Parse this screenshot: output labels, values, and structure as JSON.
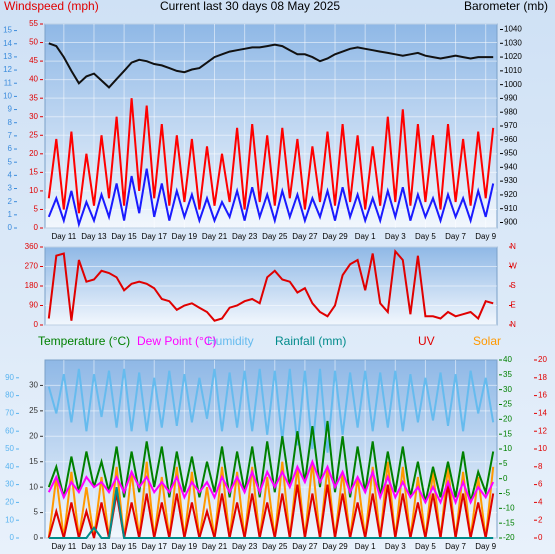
{
  "chart_data": [
    {
      "type": "line",
      "title": "Current last 30 days 08 May 2025",
      "y_label": "Windspeed (mph)",
      "y2_label": "Barometer (mb)",
      "categories": [
        null,
        null,
        "Day 11",
        null,
        null,
        null,
        "Day 13",
        null,
        null,
        null,
        "Day 15",
        null,
        null,
        null,
        "Day 17",
        null,
        null,
        null,
        "Day 19",
        null,
        null,
        null,
        "Day 21",
        null,
        null,
        null,
        "Day 23",
        null,
        null,
        null,
        "Day 25",
        null,
        null,
        null,
        "Day 27",
        null,
        null,
        null,
        "Day 29",
        null,
        null,
        null,
        "Day 1",
        null,
        null,
        null,
        "Day 3",
        null,
        null,
        null,
        "Day 5",
        null,
        null,
        null,
        "Day 7",
        null,
        null,
        null,
        "Day 9",
        null
      ],
      "ylim": [
        0,
        55
      ],
      "yticks": [
        0,
        5,
        10,
        15,
        20,
        25,
        30,
        35,
        40,
        45,
        50,
        55
      ],
      "y3lim": [
        0,
        15.5
      ],
      "y3ticks": [
        0,
        1,
        2,
        3,
        4,
        5,
        6,
        7,
        8,
        9,
        10,
        11,
        12,
        13,
        14,
        15
      ],
      "y2lim": [
        896,
        1044
      ],
      "y2ticks": [
        900,
        910,
        920,
        930,
        940,
        950,
        960,
        970,
        980,
        990,
        1000,
        1010,
        1020,
        1030,
        1040
      ],
      "grid": true,
      "series": [
        {
          "color": "#ff0000",
          "values": [
            8,
            24,
            5,
            26,
            4,
            20,
            6,
            25,
            8,
            30,
            6,
            35,
            10,
            33,
            8,
            28,
            6,
            25,
            7,
            24,
            5,
            22,
            6,
            20,
            7,
            27,
            5,
            28,
            7,
            25,
            6,
            27,
            8,
            24,
            5,
            22,
            7,
            26,
            6,
            28,
            7,
            25,
            5,
            22,
            6,
            30,
            7,
            32,
            6,
            28,
            7,
            25,
            5,
            28,
            7,
            24,
            6,
            26,
            8,
            27
          ]
        },
        {
          "color": "#1a1aff",
          "values": [
            3,
            8,
            2,
            10,
            1,
            7,
            2,
            9,
            3,
            12,
            2,
            14,
            4,
            16,
            3,
            12,
            2,
            10,
            3,
            9,
            2,
            8,
            2,
            7,
            3,
            10,
            2,
            11,
            3,
            9,
            2,
            10,
            3,
            9,
            2,
            8,
            3,
            10,
            2,
            11,
            3,
            9,
            2,
            8,
            2,
            10,
            3,
            11,
            2,
            9,
            3,
            8,
            2,
            9,
            3,
            8,
            2,
            10,
            3,
            12
          ]
        },
        {
          "color": "#111111",
          "axis": "y2",
          "values": [
            1030,
            1028,
            1020,
            1010,
            1001,
            1006,
            1008,
            1003,
            998,
            1004,
            1010,
            1016,
            1018,
            1017,
            1015,
            1014,
            1012,
            1010,
            1009,
            1011,
            1012,
            1016,
            1020,
            1022,
            1024,
            1025,
            1026,
            1027,
            1027,
            1028,
            1029,
            1028,
            1025,
            1022,
            1022,
            1020,
            1017,
            1019,
            1022,
            1024,
            1026,
            1027,
            1026,
            1025,
            1024,
            1023,
            1022,
            1021,
            1022,
            1023,
            1021,
            1020,
            1019,
            1020,
            1021,
            1020,
            1019,
            1020,
            1020,
            1020
          ]
        }
      ]
    },
    {
      "type": "line",
      "ylim": [
        0,
        360
      ],
      "yticks": [
        0,
        90,
        180,
        270,
        360
      ],
      "y2lim": [
        0,
        360
      ],
      "y2ticks": [
        {
          "value": 0,
          "label": "N"
        },
        {
          "value": 90,
          "label": "E"
        },
        {
          "value": 180,
          "label": "S"
        },
        {
          "value": 270,
          "label": "W"
        },
        {
          "value": 360,
          "label": "N"
        }
      ],
      "grid": true,
      "series": [
        {
          "color": "#e00000",
          "values": [
            30,
            320,
            330,
            20,
            300,
            200,
            210,
            250,
            240,
            220,
            160,
            190,
            200,
            190,
            170,
            120,
            110,
            70,
            90,
            100,
            80,
            60,
            20,
            30,
            80,
            90,
            110,
            120,
            100,
            220,
            250,
            210,
            200,
            150,
            170,
            100,
            60,
            40,
            90,
            230,
            280,
            300,
            160,
            330,
            100,
            60,
            340,
            300,
            50,
            320,
            40,
            40,
            30,
            60,
            40,
            50,
            60,
            30,
            110,
            100
          ]
        }
      ]
    },
    {
      "type": "line",
      "categories": [
        null,
        null,
        "Day 11",
        null,
        null,
        null,
        "Day 13",
        null,
        null,
        null,
        "Day 15",
        null,
        null,
        null,
        "Day 17",
        null,
        null,
        null,
        "Day 19",
        null,
        null,
        null,
        "Day 21",
        null,
        null,
        null,
        "Day 23",
        null,
        null,
        null,
        "Day 25",
        null,
        null,
        null,
        "Day 27",
        null,
        null,
        null,
        "Day 29",
        null,
        null,
        null,
        "Day 1",
        null,
        null,
        null,
        "Day 3",
        null,
        null,
        null,
        "Day 5",
        null,
        null,
        null,
        "Day 7",
        null,
        null,
        null,
        "Day 9",
        null
      ],
      "ylim": [
        0,
        35
      ],
      "yticks": [
        0,
        5,
        10,
        15,
        20,
        25,
        30
      ],
      "y3lim": [
        0,
        100
      ],
      "y3ticks": [
        0,
        10,
        20,
        30,
        40,
        50,
        60,
        70,
        80,
        90
      ],
      "y2lim": [
        -20,
        40
      ],
      "y2ticks": [
        -20,
        -15,
        -10,
        -5,
        0,
        5,
        10,
        15,
        20,
        25,
        30,
        35,
        40
      ],
      "y4lim": [
        0,
        20
      ],
      "y4ticks": [
        0,
        2,
        4,
        6,
        8,
        10,
        12,
        14,
        16,
        18,
        20
      ],
      "grid": true,
      "series": [
        {
          "name": "Solar",
          "color": "#ff9900",
          "values": [
            0,
            12,
            0,
            13,
            0,
            10,
            0,
            12,
            0,
            14,
            0,
            13,
            0,
            15,
            0,
            12,
            0,
            14,
            0,
            13,
            0,
            10,
            0,
            14,
            0,
            13,
            0,
            14,
            0,
            12,
            0,
            15,
            0,
            14,
            0,
            15,
            0,
            14,
            0,
            13,
            0,
            12,
            0,
            14,
            0,
            15,
            0,
            14,
            0,
            12,
            0,
            13,
            0,
            14,
            0,
            13,
            0,
            12,
            0,
            14
          ]
        },
        {
          "name": "UV",
          "color": "#e00000",
          "axis": "y4",
          "values": [
            0,
            3,
            0,
            4,
            0,
            3,
            0,
            4,
            0,
            5,
            0,
            4,
            0,
            5,
            0,
            4,
            0,
            5,
            0,
            4,
            0,
            3,
            0,
            5,
            0,
            4,
            0,
            5,
            0,
            4,
            0,
            5,
            0,
            6,
            0,
            5,
            0,
            6,
            0,
            5,
            0,
            4,
            0,
            5,
            0,
            6,
            0,
            5,
            0,
            4,
            0,
            5,
            0,
            6,
            0,
            5,
            0,
            4,
            0,
            5
          ]
        },
        {
          "name": "Humidity",
          "color": "#66bbee",
          "axis": "y3",
          "values": [
            85,
            70,
            92,
            65,
            95,
            60,
            92,
            68,
            94,
            62,
            95,
            60,
            93,
            60,
            90,
            62,
            94,
            63,
            92,
            65,
            90,
            67,
            95,
            60,
            93,
            62,
            94,
            60,
            95,
            58,
            94,
            55,
            95,
            52,
            94,
            50,
            95,
            48,
            94,
            58,
            93,
            62,
            94,
            60,
            93,
            62,
            94,
            60,
            92,
            65,
            90,
            66,
            93,
            63,
            92,
            60,
            94,
            70,
            90,
            65
          ]
        },
        {
          "name": "Rainfall (mm)",
          "color": "#008b8b",
          "values": [
            0,
            0,
            0,
            0,
            0,
            0,
            2,
            0,
            0,
            10,
            0,
            0,
            0,
            0,
            0,
            0,
            0,
            0,
            0,
            0,
            0,
            0,
            0,
            0,
            0,
            0,
            0,
            0,
            0,
            0,
            0,
            0,
            0,
            0,
            0,
            0,
            0,
            0,
            0,
            0,
            0,
            0,
            0,
            0,
            0,
            0,
            0,
            0,
            0,
            0,
            0,
            0,
            0,
            0,
            0,
            0,
            0,
            0,
            0,
            0
          ]
        },
        {
          "name": "Temperature (°C)",
          "color": "#008000",
          "values": [
            10,
            14,
            8,
            16,
            9,
            17,
            10,
            15,
            9,
            18,
            8,
            17,
            9,
            19,
            10,
            18,
            8,
            17,
            9,
            16,
            8,
            15,
            9,
            18,
            8,
            17,
            9,
            18,
            8,
            19,
            9,
            20,
            10,
            21,
            11,
            22,
            10,
            23,
            9,
            20,
            8,
            18,
            9,
            19,
            8,
            17,
            9,
            18,
            8,
            15,
            7,
            14,
            8,
            15,
            8,
            17,
            7,
            13,
            9,
            17
          ]
        },
        {
          "name": "Dew Point (°C)",
          "color": "#ff00ff",
          "values": [
            9,
            12,
            8,
            11,
            9,
            12,
            10,
            11,
            9,
            12,
            9,
            13,
            10,
            12,
            9,
            11,
            9,
            12,
            8,
            11,
            9,
            11,
            8,
            12,
            9,
            12,
            9,
            13,
            9,
            13,
            10,
            13,
            10,
            14,
            11,
            15,
            11,
            14,
            10,
            13,
            9,
            12,
            9,
            13,
            8,
            12,
            8,
            11,
            8,
            10,
            7,
            10,
            7,
            11,
            7,
            11,
            7,
            10,
            8,
            11
          ]
        }
      ]
    }
  ]
}
